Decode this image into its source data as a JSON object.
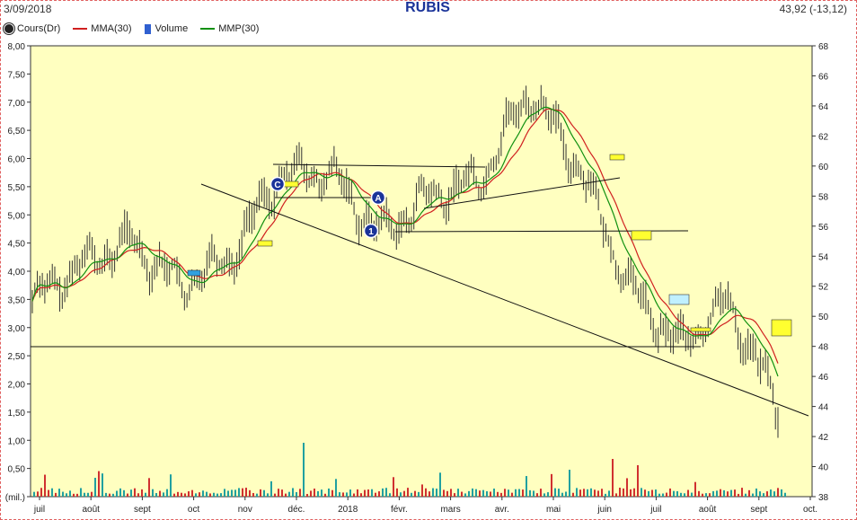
{
  "header": {
    "date": "3/09/2018",
    "title": "RUBIS",
    "last_value": "43,92",
    "change": "(-13,12)"
  },
  "legend": {
    "price": "Cours(Dr)",
    "mma": "MMA(30)",
    "volume": "Volume",
    "mmp": "MMP(30)"
  },
  "colors": {
    "plot_bg": "#ffffc0",
    "price": "#333333",
    "mma": "#d02020",
    "mmp": "#109010",
    "volume_up": "#20a0a0",
    "volume_down": "#d03030",
    "marker_yellow": "#ffff30",
    "marker_blue": "#30a0e0",
    "marker_lightblue": "#c0f0ff",
    "badge": "#1a3399"
  },
  "chart_data": {
    "type": "line",
    "left_axis_ticks": [
      "8,00",
      "7,50",
      "7,00",
      "6,50",
      "6,00",
      "5,50",
      "5,00",
      "4,50",
      "4,00",
      "3,50",
      "3,00",
      "2,50",
      "2,00",
      "1,50",
      "1,00",
      "0,50",
      "(mil.)"
    ],
    "right_axis_ticks": [
      "68",
      "66",
      "64",
      "62",
      "60",
      "58",
      "56",
      "54",
      "52",
      "50",
      "48",
      "46",
      "44",
      "42",
      "40",
      "38"
    ],
    "right_ylim": [
      38,
      68
    ],
    "x_labels": [
      "juil",
      "août",
      "sept",
      "oct",
      "nov",
      "déc.",
      "2018",
      "févr.",
      "mars",
      "avr.",
      "mai",
      "juin",
      "juil",
      "août",
      "sept",
      "oct."
    ],
    "price_approx": [
      {
        "month": "juil",
        "value": 51
      },
      {
        "month": "août",
        "value": 53.5
      },
      {
        "month": "sept",
        "value": 55
      },
      {
        "month": "oct",
        "value": 52
      },
      {
        "month": "nov",
        "value": 54
      },
      {
        "month": "déc.",
        "value": 59.5
      },
      {
        "month": "2018",
        "value": 59.5
      },
      {
        "month": "févr.",
        "value": 55.5
      },
      {
        "month": "mars",
        "value": 58
      },
      {
        "month": "avr.",
        "value": 59
      },
      {
        "month": "mai",
        "value": 65
      },
      {
        "month": "juin",
        "value": 60
      },
      {
        "month": "juil",
        "value": 52
      },
      {
        "month": "août",
        "value": 48
      },
      {
        "month": "sept",
        "value": 51
      },
      {
        "month": "sept",
        "value": 43.92
      }
    ],
    "annotations": [
      "C",
      "A",
      "1"
    ],
    "grid": false,
    "legend_position": "top-left"
  }
}
